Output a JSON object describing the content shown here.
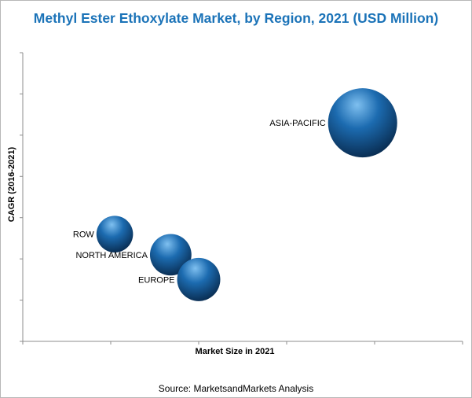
{
  "title": "Methyl Ester Ethoxylate Market, by Region, 2021 (USD Million)",
  "source": "Source: MarketsandMarkets Analysis",
  "chart_data": {
    "type": "scatter",
    "subtype": "bubble",
    "title": "Methyl Ester Ethoxylate Market, by Region, 2021 (USD Million)",
    "xlabel": "Market Size in 2021",
    "ylabel": "CAGR (2016-2021)",
    "xlim": [
      0,
      11
    ],
    "ylim": [
      0,
      7
    ],
    "x_tick_count": 6,
    "y_tick_count": 8,
    "grid": false,
    "legend": "none",
    "colors": {
      "bubble": "#1c6bb0",
      "bubble_highlight": "#7fc0f0",
      "bubble_shadow": "#0a2f55",
      "axis": "#8c8c8c",
      "title": "#1b73b8"
    },
    "points": [
      {
        "label": "ASIA-PACIFIC",
        "x": 8.5,
        "y": 5.3,
        "size": 1.0
      },
      {
        "label": "ROW",
        "x": 2.3,
        "y": 2.6,
        "size": 0.28
      },
      {
        "label": "NORTH AMERICA",
        "x": 3.7,
        "y": 2.1,
        "size": 0.36
      },
      {
        "label": "EUROPE",
        "x": 4.4,
        "y": 1.5,
        "size": 0.39
      }
    ]
  }
}
